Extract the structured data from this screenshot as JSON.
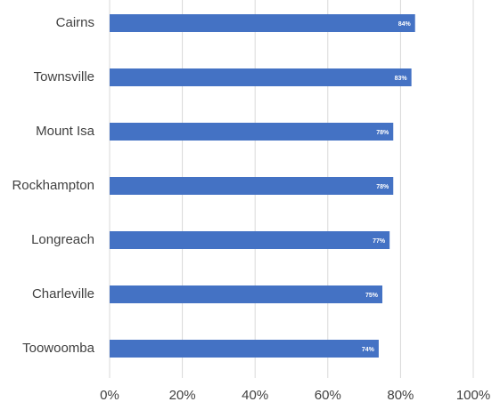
{
  "chart_data": {
    "type": "bar",
    "orientation": "horizontal",
    "categories": [
      "Cairns",
      "Townsville",
      "Mount Isa",
      "Rockhampton",
      "Longreach",
      "Charleville",
      "Toowoomba"
    ],
    "values": [
      84,
      83,
      78,
      78,
      77,
      75,
      74
    ],
    "value_labels": [
      "84%",
      "83%",
      "78%",
      "78%",
      "77%",
      "75%",
      "74%"
    ],
    "color": "#4472c4",
    "xlim": [
      0,
      100
    ],
    "xticks": [
      {
        "value": 0,
        "label": "0%"
      },
      {
        "value": 20,
        "label": "20%"
      },
      {
        "value": 40,
        "label": "40%"
      },
      {
        "value": 60,
        "label": "60%"
      },
      {
        "value": 80,
        "label": "80%"
      },
      {
        "value": 100,
        "label": "100%"
      }
    ],
    "grid": true
  }
}
